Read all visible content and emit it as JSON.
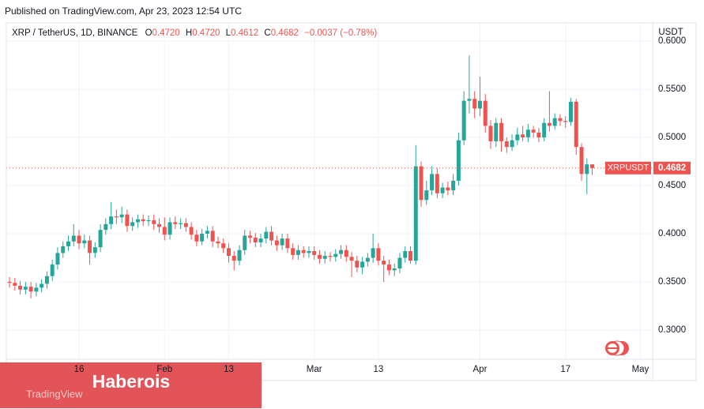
{
  "header": {
    "published": "Published on TradingView.com, Apr 23, 2023 12:54 UTC"
  },
  "legend": {
    "symbol": "XRP / TetherUS, 1D, BINANCE",
    "open_key": "O",
    "open": "0.4720",
    "high_key": "H",
    "high": "0.4720",
    "low_key": "L",
    "low": "0.4612",
    "close_key": "C",
    "close": "0.4682",
    "change": "−0.0037 (−0.78%)"
  },
  "watermark": "Haberois",
  "logo": "TradingView",
  "chart_data": {
    "type": "candlestick",
    "y_axis_label": "USDT",
    "up_color": "#26a69a",
    "down_color": "#ef5350",
    "grid": true,
    "xlim": [
      2.4,
      123.3
    ],
    "xticks": [
      {
        "value": 16,
        "label": "16"
      },
      {
        "value": 32,
        "label": "Feb"
      },
      {
        "value": 44,
        "label": "13"
      },
      {
        "value": 60,
        "label": "Mar"
      },
      {
        "value": 72,
        "label": "13"
      },
      {
        "value": 91,
        "label": "Apr"
      },
      {
        "value": 107,
        "label": "17"
      },
      {
        "value": 121,
        "label": "May"
      }
    ],
    "ylim": [
      0.2697,
      0.6
    ],
    "yticks": [
      {
        "value": 0.3,
        "label": "0.3000"
      },
      {
        "value": 0.35,
        "label": "0.3500"
      },
      {
        "value": 0.4,
        "label": "0.4000"
      },
      {
        "value": 0.45,
        "label": "0.4500"
      },
      {
        "value": 0.5,
        "label": "0.5000"
      },
      {
        "value": 0.55,
        "label": "0.5500"
      },
      {
        "value": 0.6,
        "label": "0.6000"
      }
    ],
    "price_line": {
      "name": "XRPUSDT",
      "value": 0.4682
    },
    "x": [
      3,
      4,
      5,
      6,
      7,
      8,
      9,
      10,
      11,
      12,
      13,
      14,
      15,
      16,
      17,
      18,
      19,
      20,
      21,
      22,
      23,
      24,
      25,
      26,
      27,
      28,
      29,
      30,
      31,
      32,
      33,
      34,
      35,
      36,
      37,
      38,
      39,
      40,
      41,
      42,
      43,
      44,
      45,
      46,
      47,
      48,
      49,
      50,
      51,
      52,
      53,
      54,
      55,
      56,
      57,
      58,
      59,
      60,
      61,
      62,
      63,
      64,
      65,
      66,
      67,
      68,
      69,
      70,
      71,
      72,
      73,
      74,
      75,
      76,
      77,
      78,
      79,
      80,
      81,
      82,
      83,
      84,
      85,
      86,
      87,
      88,
      89,
      90,
      91,
      92,
      93,
      94,
      95,
      96,
      97,
      98,
      99,
      100,
      101,
      102,
      103,
      104,
      105,
      106,
      107,
      108,
      109,
      110,
      111,
      112
    ],
    "open": [
      0.35,
      0.349,
      0.346,
      0.342,
      0.345,
      0.34,
      0.344,
      0.348,
      0.356,
      0.368,
      0.38,
      0.387,
      0.392,
      0.398,
      0.39,
      0.393,
      0.38,
      0.386,
      0.404,
      0.41,
      0.418,
      0.417,
      0.42,
      0.408,
      0.412,
      0.415,
      0.413,
      0.414,
      0.41,
      0.407,
      0.399,
      0.412,
      0.41,
      0.411,
      0.407,
      0.399,
      0.392,
      0.4,
      0.403,
      0.392,
      0.39,
      0.385,
      0.377,
      0.372,
      0.383,
      0.398,
      0.396,
      0.391,
      0.395,
      0.402,
      0.393,
      0.388,
      0.395,
      0.385,
      0.378,
      0.383,
      0.38,
      0.382,
      0.378,
      0.374,
      0.377,
      0.376,
      0.379,
      0.383,
      0.376,
      0.372,
      0.365,
      0.371,
      0.375,
      0.385,
      0.372,
      0.368,
      0.362,
      0.364,
      0.375,
      0.382,
      0.372,
      0.47,
      0.435,
      0.445,
      0.462,
      0.442,
      0.448,
      0.445,
      0.455,
      0.497,
      0.538,
      0.54,
      0.53,
      0.538,
      0.512,
      0.496,
      0.515,
      0.496,
      0.49,
      0.497,
      0.503,
      0.5,
      0.508,
      0.505,
      0.5,
      0.515,
      0.512,
      0.52,
      0.517,
      0.516,
      0.537,
      0.49,
      0.462,
      0.472
    ],
    "high": [
      0.355,
      0.354,
      0.351,
      0.35,
      0.35,
      0.349,
      0.353,
      0.361,
      0.373,
      0.386,
      0.392,
      0.398,
      0.41,
      0.404,
      0.399,
      0.398,
      0.391,
      0.41,
      0.416,
      0.433,
      0.425,
      0.428,
      0.425,
      0.417,
      0.42,
      0.42,
      0.419,
      0.42,
      0.416,
      0.417,
      0.417,
      0.418,
      0.416,
      0.416,
      0.412,
      0.404,
      0.405,
      0.408,
      0.408,
      0.397,
      0.395,
      0.39,
      0.382,
      0.388,
      0.404,
      0.403,
      0.401,
      0.4,
      0.407,
      0.408,
      0.398,
      0.4,
      0.4,
      0.39,
      0.388,
      0.387,
      0.387,
      0.387,
      0.383,
      0.382,
      0.381,
      0.384,
      0.388,
      0.388,
      0.381,
      0.377,
      0.376,
      0.38,
      0.4,
      0.39,
      0.377,
      0.373,
      0.369,
      0.38,
      0.387,
      0.387,
      0.492,
      0.475,
      0.455,
      0.47,
      0.468,
      0.453,
      0.454,
      0.462,
      0.505,
      0.548,
      0.585,
      0.548,
      0.563,
      0.545,
      0.518,
      0.52,
      0.52,
      0.5,
      0.503,
      0.51,
      0.512,
      0.514,
      0.512,
      0.51,
      0.52,
      0.548,
      0.525,
      0.524,
      0.522,
      0.541,
      0.54,
      0.494,
      0.478,
      0.472
    ],
    "low": [
      0.344,
      0.341,
      0.337,
      0.337,
      0.333,
      0.335,
      0.339,
      0.343,
      0.351,
      0.363,
      0.375,
      0.382,
      0.387,
      0.384,
      0.385,
      0.368,
      0.375,
      0.381,
      0.399,
      0.405,
      0.41,
      0.411,
      0.402,
      0.403,
      0.406,
      0.408,
      0.408,
      0.404,
      0.401,
      0.393,
      0.394,
      0.405,
      0.405,
      0.402,
      0.394,
      0.387,
      0.388,
      0.395,
      0.386,
      0.385,
      0.38,
      0.37,
      0.362,
      0.367,
      0.378,
      0.39,
      0.386,
      0.386,
      0.39,
      0.388,
      0.382,
      0.383,
      0.38,
      0.373,
      0.373,
      0.375,
      0.375,
      0.373,
      0.369,
      0.369,
      0.371,
      0.371,
      0.374,
      0.371,
      0.355,
      0.36,
      0.358,
      0.366,
      0.37,
      0.367,
      0.35,
      0.357,
      0.356,
      0.359,
      0.37,
      0.369,
      0.368,
      0.428,
      0.43,
      0.44,
      0.437,
      0.437,
      0.44,
      0.44,
      0.45,
      0.492,
      0.525,
      0.52,
      0.522,
      0.505,
      0.488,
      0.49,
      0.485,
      0.484,
      0.486,
      0.492,
      0.496,
      0.495,
      0.5,
      0.495,
      0.496,
      0.506,
      0.508,
      0.512,
      0.51,
      0.512,
      0.482,
      0.455,
      0.441,
      0.4612
    ],
    "close": [
      0.349,
      0.346,
      0.342,
      0.345,
      0.34,
      0.344,
      0.348,
      0.356,
      0.368,
      0.38,
      0.387,
      0.392,
      0.398,
      0.39,
      0.393,
      0.38,
      0.386,
      0.404,
      0.41,
      0.418,
      0.417,
      0.42,
      0.408,
      0.412,
      0.415,
      0.413,
      0.414,
      0.41,
      0.407,
      0.399,
      0.412,
      0.41,
      0.411,
      0.407,
      0.399,
      0.392,
      0.4,
      0.403,
      0.392,
      0.39,
      0.385,
      0.377,
      0.372,
      0.383,
      0.398,
      0.396,
      0.391,
      0.395,
      0.402,
      0.393,
      0.388,
      0.395,
      0.385,
      0.378,
      0.383,
      0.38,
      0.382,
      0.378,
      0.374,
      0.377,
      0.376,
      0.379,
      0.383,
      0.376,
      0.372,
      0.365,
      0.371,
      0.375,
      0.385,
      0.372,
      0.368,
      0.362,
      0.364,
      0.375,
      0.382,
      0.372,
      0.47,
      0.435,
      0.445,
      0.462,
      0.442,
      0.448,
      0.445,
      0.455,
      0.497,
      0.538,
      0.54,
      0.53,
      0.538,
      0.512,
      0.496,
      0.515,
      0.496,
      0.49,
      0.497,
      0.503,
      0.5,
      0.508,
      0.505,
      0.5,
      0.515,
      0.512,
      0.52,
      0.517,
      0.516,
      0.537,
      0.49,
      0.462,
      0.472,
      0.4682
    ]
  }
}
